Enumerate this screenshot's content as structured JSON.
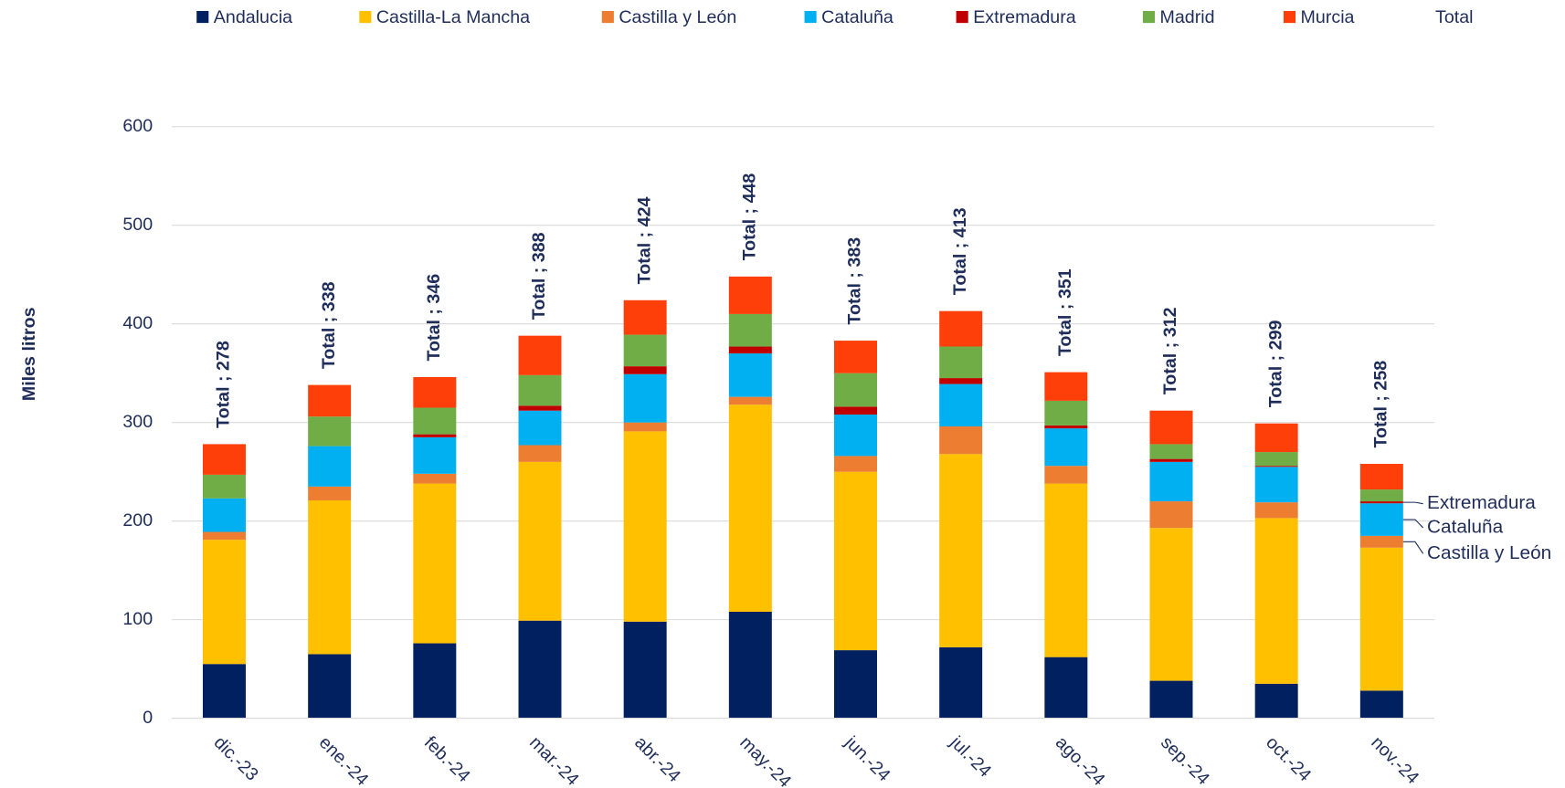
{
  "chart_data": {
    "type": "bar",
    "stacked": true,
    "y_label": "Miles litros",
    "categories": [
      "dic.-23",
      "ene.-24",
      "feb.-24",
      "mar.-24",
      "abr.-24",
      "may.-24",
      "jun.-24",
      "jul.-24",
      "ago.-24",
      "sep.-24",
      "oct.-24",
      "nov.-24"
    ],
    "series": [
      {
        "name": "Andalucia",
        "color": "#002060",
        "values": [
          55,
          65,
          76,
          99,
          98,
          108,
          69,
          72,
          62,
          38,
          35,
          28
        ]
      },
      {
        "name": "Castilla-La Mancha",
        "color": "#ffc000",
        "values": [
          126,
          156,
          162,
          161,
          193,
          210,
          181,
          196,
          176,
          155,
          168,
          145
        ]
      },
      {
        "name": "Castilla y León",
        "color": "#ed7d31",
        "values": [
          8,
          14,
          10,
          17,
          9,
          8,
          16,
          28,
          18,
          27,
          16,
          12
        ]
      },
      {
        "name": "Cataluña",
        "color": "#00b0f0",
        "values": [
          34,
          41,
          37,
          35,
          49,
          44,
          42,
          43,
          38,
          40,
          36,
          33
        ]
      },
      {
        "name": "Extremadura",
        "color": "#c00000",
        "values": [
          0,
          0,
          3,
          5,
          8,
          7,
          8,
          6,
          3,
          3,
          1,
          2
        ]
      },
      {
        "name": "Madrid",
        "color": "#70ad47",
        "values": [
          24,
          30,
          27,
          31,
          32,
          33,
          34,
          32,
          25,
          15,
          14,
          12
        ]
      },
      {
        "name": "Murcia",
        "color": "#ff3f0a",
        "values": [
          31,
          32,
          31,
          40,
          35,
          38,
          33,
          36,
          29,
          34,
          29,
          26
        ]
      },
      {
        "name": "Total",
        "values": [
          278,
          338,
          346,
          388,
          424,
          448,
          383,
          413,
          351,
          312,
          299,
          258
        ],
        "value_labels": [
          "Total ; 278",
          "Total ; 338",
          "Total ; 346",
          "Total ; 388",
          "Total ; 424",
          "Total ; 448",
          "Total ; 383",
          "Total ; 413",
          "Total ; 351",
          "Total ; 312",
          "Total ; 299",
          "Total ; 258"
        ]
      }
    ],
    "ylim": [
      0,
      600
    ],
    "yticks": [
      0,
      100,
      200,
      300,
      400,
      500,
      600
    ],
    "grid": true,
    "legend": "top"
  }
}
